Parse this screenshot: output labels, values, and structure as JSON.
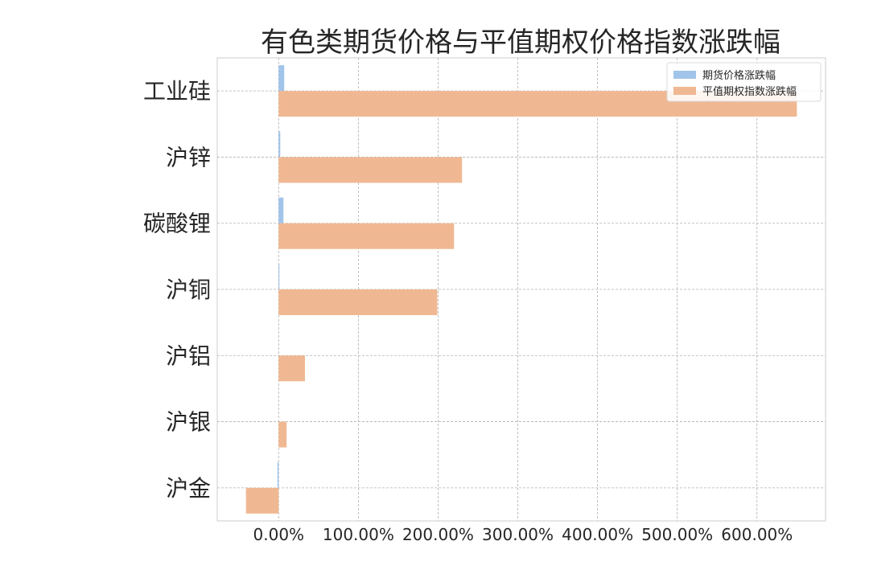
{
  "chart_data": {
    "type": "bar",
    "orientation": "horizontal",
    "title": "有色类期货价格与平值期权价格指数涨跌幅",
    "categories": [
      "工业硅",
      "沪锌",
      "碳酸锂",
      "沪铜",
      "沪铝",
      "沪银",
      "沪金"
    ],
    "series": [
      {
        "name": "期货价格涨跌幅",
        "color": "#a1c4ea",
        "values": [
          7,
          2,
          6,
          1,
          0,
          0,
          -1.5
        ]
      },
      {
        "name": "平值期权指数涨跌幅",
        "color": "#f0b892",
        "values": [
          650,
          230,
          220,
          199,
          33,
          10,
          -41
        ]
      }
    ],
    "x_ticks": [
      "0.00%",
      "100.00%",
      "200.00%",
      "300.00%",
      "400.00%",
      "500.00%",
      "600.00%"
    ],
    "x_tick_values": [
      0,
      100,
      200,
      300,
      400,
      500,
      600
    ],
    "xlim": [
      -77,
      686
    ],
    "xlabel": "",
    "ylabel": "",
    "grid": true,
    "legend_position": "top-right"
  }
}
